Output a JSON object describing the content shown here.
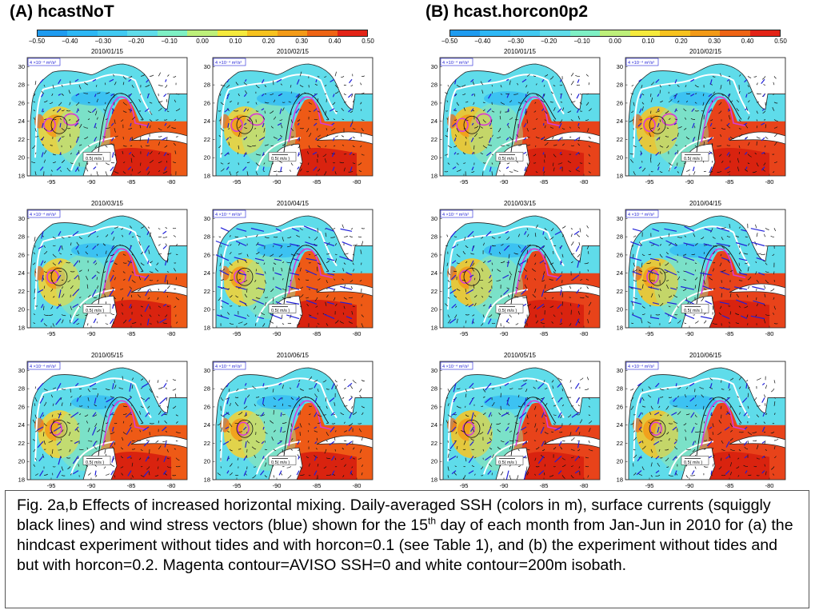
{
  "panels": {
    "A": {
      "title": "(A) hcastNoT"
    },
    "B": {
      "title": "(B) hcast.horcon0p2"
    }
  },
  "colorbar": {
    "ticks": [
      "−0.50",
      "−0.40",
      "−0.30",
      "−0.20",
      "−0.10",
      "0.00",
      "0.10",
      "0.20",
      "0.30",
      "0.40",
      "0.50"
    ],
    "colors": [
      "#1e9bf0",
      "#2db7f5",
      "#41c9f2",
      "#5fdcea",
      "#7ef0c4",
      "#bdf07a",
      "#f5ea3c",
      "#f7c21e",
      "#f39a17",
      "#ee6414",
      "#e32316"
    ]
  },
  "maps": {
    "dates": [
      "2010/01/15",
      "2010/02/15",
      "2010/03/15",
      "2010/04/15",
      "2010/05/15",
      "2010/06/15"
    ],
    "y_ticks": [
      "30",
      "28",
      "26",
      "24",
      "22",
      "20",
      "18"
    ],
    "x_ticks": [
      "-95",
      "-90",
      "-85",
      "-80"
    ],
    "wind_scale_label": "4 ×10⁻⁴ m²/s²",
    "current_scale_label": "0.5( m/s )"
  },
  "caption": {
    "part1": "Fig. 2a,b Effects of increased horizontal mixing. Daily-averaged SSH (colors in m), surface currents (squiggly black lines) and wind stress vectors (blue) shown for the 15",
    "sup": "th",
    "part2": " day of each month from Jan-Jun in 2010 for (a) the hindcast experiment without tides and with horcon=0.1 (see Table 1), and (b) the experiment without tides and but with horcon=0.2. Magenta contour=AVISO SSH=0 and white contour=200m isobath."
  }
}
